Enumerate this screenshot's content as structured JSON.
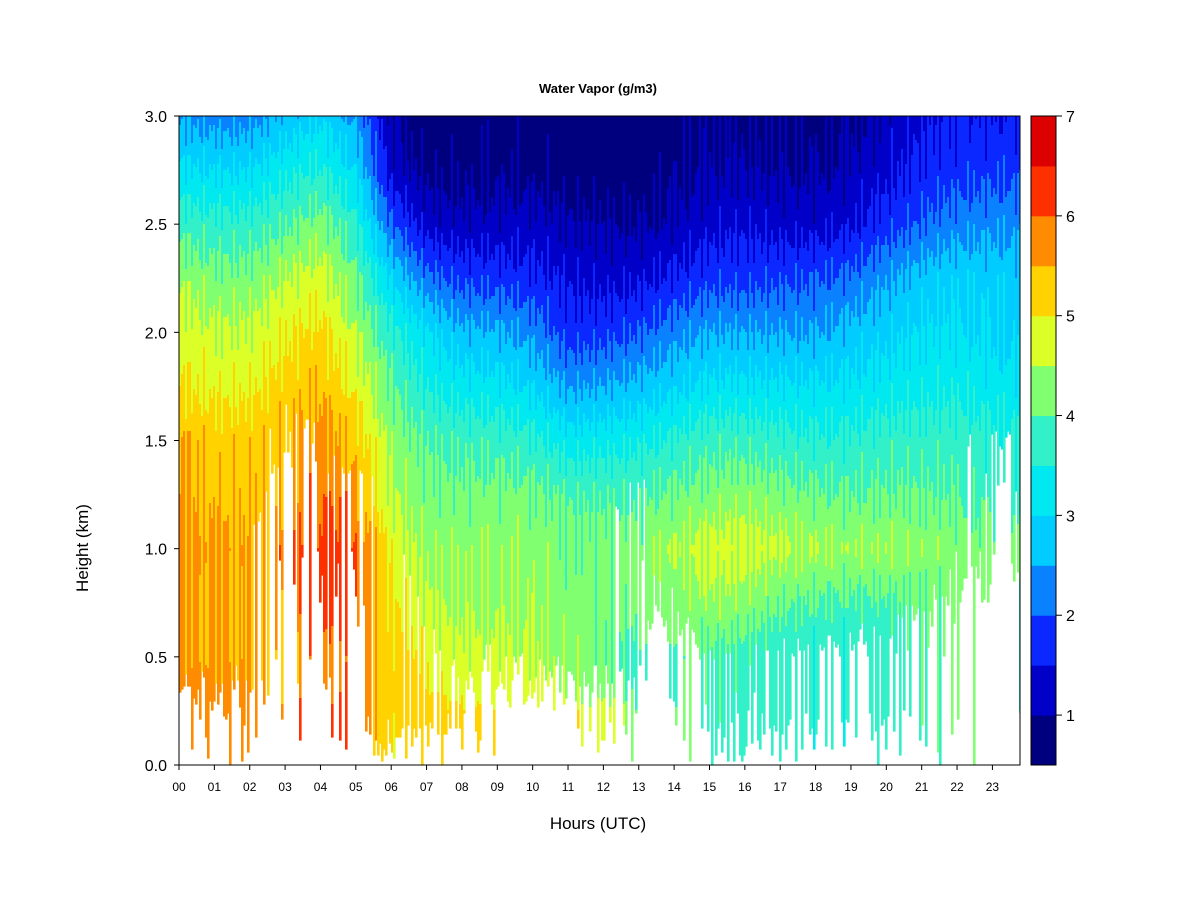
{
  "chart_data": {
    "type": "heatmap",
    "title": "Water Vapor (g/m3)",
    "xlabel": "Hours (UTC)",
    "ylabel": "Height (km)",
    "xlim": [
      0,
      24
    ],
    "ylim": [
      0.0,
      3.0
    ],
    "x_tick_values": [
      0,
      1,
      2,
      3,
      4,
      5,
      6,
      7,
      8,
      9,
      10,
      11,
      12,
      13,
      14,
      15,
      16,
      17,
      18,
      19,
      20,
      21,
      22,
      23
    ],
    "x_tick_labels": [
      "00",
      "01",
      "02",
      "03",
      "04",
      "05",
      "06",
      "07",
      "08",
      "09",
      "10",
      "11",
      "12",
      "13",
      "14",
      "15",
      "16",
      "17",
      "18",
      "19",
      "20",
      "21",
      "22",
      "23"
    ],
    "y_tick_values": [
      0.0,
      0.5,
      1.0,
      1.5,
      2.0,
      2.5,
      3.0
    ],
    "y_tick_labels": [
      "0.0",
      "0.5",
      "1.0",
      "1.5",
      "2.0",
      "2.5",
      "3.0"
    ],
    "colorbar": {
      "range": [
        0.5,
        7.0
      ],
      "level_bounds": [
        0.5,
        1.0,
        1.5,
        2.0,
        2.5,
        3.0,
        3.5,
        4.0,
        4.5,
        5.0,
        5.5,
        6.0,
        6.5,
        7.0
      ],
      "colors": [
        "#00007f",
        "#0000c8",
        "#0a28ff",
        "#0a82ff",
        "#00ccff",
        "#00e8f0",
        "#32f0c8",
        "#80ff70",
        "#dcff28",
        "#ffd200",
        "#ff8c00",
        "#ff3000",
        "#dc0000",
        "#7f0000"
      ],
      "tick_values": [
        1,
        2,
        3,
        4,
        5,
        6,
        7
      ],
      "tick_labels": [
        "1",
        "2",
        "3",
        "4",
        "5",
        "6",
        "7"
      ]
    },
    "x": [
      0,
      1,
      2,
      3,
      4,
      5,
      6,
      7,
      8,
      9,
      10,
      11,
      12,
      13,
      14,
      15,
      16,
      17,
      18,
      19,
      20,
      21,
      22,
      23,
      24
    ],
    "y": [
      0.0,
      0.25,
      0.5,
      0.75,
      1.0,
      1.25,
      1.5,
      1.75,
      2.0,
      2.25,
      2.5,
      2.75,
      3.0
    ],
    "z": [
      [
        6.3,
        6.2,
        6.1,
        5.6,
        5.9,
        5.5,
        4.7,
        4.9,
        5.0,
        5.0,
        4.9,
        4.8,
        4.5,
        4.1,
        3.9,
        3.4,
        3.3,
        3.3,
        3.3,
        3.3,
        3.3,
        3.5,
        3.7,
        3.9,
        3.9
      ],
      [
        6.2,
        6.1,
        6.0,
        5.7,
        5.9,
        5.6,
        5.3,
        5.2,
        5.2,
        5.0,
        4.9,
        4.8,
        4.7,
        4.2,
        3.9,
        3.7,
        3.6,
        3.6,
        3.6,
        3.5,
        3.5,
        3.7,
        3.8,
        3.9,
        4.0
      ],
      [
        5.6,
        5.6,
        5.6,
        5.6,
        5.7,
        5.6,
        5.3,
        5.0,
        4.7,
        4.6,
        4.4,
        4.3,
        4.2,
        4.0,
        3.8,
        3.8,
        3.7,
        3.6,
        3.6,
        3.5,
        3.5,
        3.7,
        3.8,
        3.9,
        3.9
      ],
      [
        5.6,
        5.6,
        5.6,
        5.7,
        5.9,
        5.8,
        5.1,
        4.7,
        4.5,
        4.3,
        4.3,
        4.2,
        4.3,
        4.3,
        4.2,
        4.3,
        4.2,
        4.1,
        4.1,
        4.0,
        3.9,
        3.9,
        3.9,
        3.9,
        3.9
      ],
      [
        5.7,
        5.7,
        5.6,
        5.8,
        6.0,
        5.9,
        4.9,
        4.5,
        4.4,
        4.3,
        4.2,
        4.1,
        4.3,
        4.4,
        4.5,
        4.6,
        4.6,
        4.6,
        4.6,
        4.5,
        4.4,
        4.2,
        4.2,
        4.1,
        4.1
      ],
      [
        5.5,
        5.5,
        5.5,
        5.6,
        5.8,
        5.6,
        4.6,
        4.3,
        4.2,
        4.1,
        4.0,
        3.9,
        4.0,
        4.1,
        4.1,
        4.1,
        4.2,
        4.2,
        4.2,
        4.1,
        4.0,
        3.9,
        3.9,
        3.9,
        3.9
      ],
      [
        5.5,
        5.4,
        5.4,
        5.5,
        5.6,
        5.2,
        4.4,
        4.1,
        3.9,
        3.7,
        3.5,
        3.2,
        3.4,
        3.5,
        3.6,
        3.7,
        3.7,
        3.7,
        3.7,
        3.7,
        3.7,
        3.6,
        3.7,
        3.7,
        3.7
      ],
      [
        5.0,
        5.0,
        5.0,
        5.2,
        5.3,
        4.8,
        4.1,
        3.6,
        3.3,
        3.1,
        2.8,
        2.4,
        2.6,
        2.8,
        2.9,
        3.0,
        3.0,
        3.1,
        3.2,
        3.2,
        3.2,
        3.2,
        3.3,
        3.3,
        3.3
      ],
      [
        4.8,
        4.7,
        4.7,
        4.9,
        5.0,
        4.4,
        3.7,
        3.2,
        2.7,
        2.5,
        2.2,
        1.7,
        1.9,
        2.1,
        2.3,
        2.4,
        2.4,
        2.5,
        2.6,
        2.8,
        2.8,
        2.9,
        3.0,
        3.0,
        3.0
      ],
      [
        4.4,
        4.3,
        4.3,
        4.5,
        4.6,
        4.0,
        3.0,
        2.3,
        1.9,
        1.7,
        1.5,
        1.4,
        1.4,
        1.5,
        1.6,
        1.7,
        1.7,
        1.9,
        2.1,
        2.2,
        2.4,
        2.6,
        2.8,
        2.9,
        2.9
      ],
      [
        3.8,
        3.8,
        3.8,
        3.9,
        4.1,
        3.5,
        2.1,
        1.4,
        1.2,
        1.1,
        1.1,
        1.0,
        1.1,
        1.1,
        1.1,
        1.2,
        1.3,
        1.3,
        1.4,
        1.5,
        1.7,
        1.9,
        2.2,
        2.4,
        2.5
      ],
      [
        3.1,
        3.1,
        3.1,
        3.3,
        3.4,
        2.9,
        1.3,
        1.0,
        0.9,
        0.8,
        0.7,
        0.7,
        0.8,
        0.8,
        0.9,
        0.9,
        0.9,
        1.0,
        1.1,
        1.2,
        1.3,
        1.5,
        1.7,
        1.9,
        2.0
      ],
      [
        2.4,
        2.4,
        2.4,
        2.6,
        2.8,
        2.3,
        1.1,
        0.8,
        0.8,
        0.7,
        0.6,
        0.6,
        0.7,
        0.7,
        0.8,
        0.8,
        0.8,
        0.9,
        0.9,
        1.0,
        1.1,
        1.3,
        1.5,
        1.6,
        1.7
      ]
    ]
  }
}
